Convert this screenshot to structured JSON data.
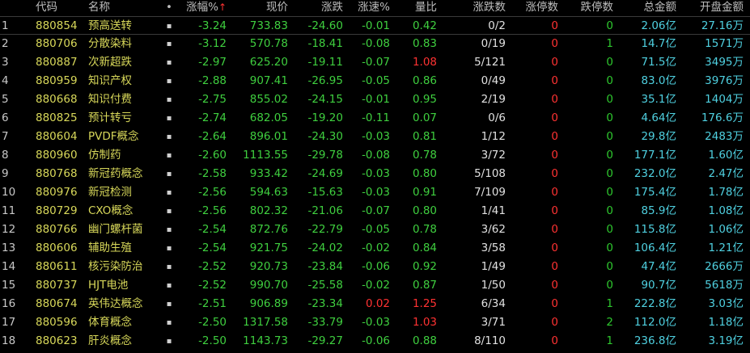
{
  "headers": {
    "code": "代码",
    "name": "名称",
    "dot": "•",
    "pct": "涨幅%",
    "sort_arrow": "↑",
    "price": "现价",
    "chg": "涨跌",
    "speed": "涨速%",
    "volratio": "量比",
    "updown": "涨跌数",
    "limitup": "涨停数",
    "limitdown": "跌停数",
    "amount": "总金额",
    "open_amount": "开盘金额"
  },
  "rows": [
    {
      "idx": "1",
      "code": "880854",
      "name": "预高送转",
      "dot": "▪",
      "pct": "-3.24",
      "price": "733.83",
      "chg": "-24.60",
      "speed": "-0.01",
      "vol": "0.42",
      "ud": "0/2",
      "lu": "0",
      "ld": "0",
      "amt": "2.06亿",
      "open": "27.16万"
    },
    {
      "idx": "2",
      "code": "880706",
      "name": "分散染料",
      "dot": "▪",
      "pct": "-3.12",
      "price": "570.78",
      "chg": "-18.41",
      "speed": "-0.08",
      "vol": "0.83",
      "ud": "0/19",
      "lu": "0",
      "ld": "1",
      "amt": "14.7亿",
      "open": "1571万"
    },
    {
      "idx": "3",
      "code": "880887",
      "name": "次新超跌",
      "dot": "▪",
      "pct": "-2.97",
      "price": "625.20",
      "chg": "-19.11",
      "speed": "-0.07",
      "vol": "1.08",
      "ud": "5/121",
      "lu": "0",
      "ld": "0",
      "amt": "71.5亿",
      "open": "3495万"
    },
    {
      "idx": "4",
      "code": "880959",
      "name": "知识产权",
      "dot": "▪",
      "pct": "-2.88",
      "price": "907.41",
      "chg": "-26.95",
      "speed": "-0.05",
      "vol": "0.86",
      "ud": "0/49",
      "lu": "0",
      "ld": "0",
      "amt": "83.0亿",
      "open": "3976万"
    },
    {
      "idx": "5",
      "code": "880668",
      "name": "知识付费",
      "dot": "▪",
      "pct": "-2.75",
      "price": "855.02",
      "chg": "-24.15",
      "speed": "-0.01",
      "vol": "0.95",
      "ud": "2/19",
      "lu": "0",
      "ld": "0",
      "amt": "35.1亿",
      "open": "1404万"
    },
    {
      "idx": "6",
      "code": "880825",
      "name": "预计转亏",
      "dot": "▪",
      "pct": "-2.74",
      "price": "682.05",
      "chg": "-19.20",
      "speed": "-0.11",
      "vol": "0.07",
      "ud": "0/6",
      "lu": "0",
      "ld": "0",
      "amt": "4.64亿",
      "open": "176.6万"
    },
    {
      "idx": "7",
      "code": "880604",
      "name": "PVDF概念",
      "dot": "▪",
      "pct": "-2.64",
      "price": "896.01",
      "chg": "-24.30",
      "speed": "-0.03",
      "vol": "0.81",
      "ud": "1/12",
      "lu": "0",
      "ld": "0",
      "amt": "29.8亿",
      "open": "2483万"
    },
    {
      "idx": "8",
      "code": "880960",
      "name": "仿制药",
      "dot": "▪",
      "pct": "-2.60",
      "price": "1113.55",
      "chg": "-29.78",
      "speed": "-0.08",
      "vol": "0.78",
      "ud": "3/72",
      "lu": "0",
      "ld": "0",
      "amt": "177.1亿",
      "open": "1.60亿"
    },
    {
      "idx": "9",
      "code": "880768",
      "name": "新冠药概念",
      "dot": "▪",
      "pct": "-2.58",
      "price": "933.42",
      "chg": "-24.69",
      "speed": "-0.03",
      "vol": "0.80",
      "ud": "5/108",
      "lu": "0",
      "ld": "0",
      "amt": "232.0亿",
      "open": "2.47亿"
    },
    {
      "idx": "10",
      "code": "880976",
      "name": "新冠检测",
      "dot": "▪",
      "pct": "-2.56",
      "price": "594.63",
      "chg": "-15.63",
      "speed": "-0.03",
      "vol": "0.91",
      "ud": "7/109",
      "lu": "0",
      "ld": "0",
      "amt": "175.4亿",
      "open": "1.78亿"
    },
    {
      "idx": "11",
      "code": "880729",
      "name": "CXO概念",
      "dot": "▪",
      "pct": "-2.56",
      "price": "802.32",
      "chg": "-21.06",
      "speed": "-0.07",
      "vol": "0.80",
      "ud": "1/41",
      "lu": "0",
      "ld": "0",
      "amt": "85.9亿",
      "open": "1.08亿"
    },
    {
      "idx": "12",
      "code": "880766",
      "name": "幽门螺杆菌",
      "dot": "▪",
      "pct": "-2.54",
      "price": "872.76",
      "chg": "-22.79",
      "speed": "-0.05",
      "vol": "0.78",
      "ud": "3/62",
      "lu": "0",
      "ld": "0",
      "amt": "115.8亿",
      "open": "1.06亿"
    },
    {
      "idx": "13",
      "code": "880606",
      "name": "辅助生殖",
      "dot": "▪",
      "pct": "-2.54",
      "price": "921.75",
      "chg": "-24.02",
      "speed": "-0.02",
      "vol": "0.84",
      "ud": "3/58",
      "lu": "0",
      "ld": "0",
      "amt": "106.4亿",
      "open": "1.21亿"
    },
    {
      "idx": "14",
      "code": "880611",
      "name": "核污染防治",
      "dot": "▪",
      "pct": "-2.52",
      "price": "920.73",
      "chg": "-23.84",
      "speed": "-0.06",
      "vol": "0.92",
      "ud": "1/49",
      "lu": "0",
      "ld": "0",
      "amt": "47.4亿",
      "open": "2666万"
    },
    {
      "idx": "15",
      "code": "880737",
      "name": "HJT电池",
      "dot": "▪",
      "pct": "-2.52",
      "price": "990.70",
      "chg": "-25.58",
      "speed": "-0.02",
      "vol": "0.87",
      "ud": "1/50",
      "lu": "0",
      "ld": "0",
      "amt": "90.7亿",
      "open": "5618万"
    },
    {
      "idx": "16",
      "code": "880674",
      "name": "英伟达概念",
      "dot": "▪",
      "pct": "-2.51",
      "price": "906.89",
      "chg": "-23.34",
      "speed": "0.02",
      "vol": "1.25",
      "ud": "6/34",
      "lu": "0",
      "ld": "1",
      "amt": "222.8亿",
      "open": "3.03亿"
    },
    {
      "idx": "17",
      "code": "880596",
      "name": "体育概念",
      "dot": "▪",
      "pct": "-2.50",
      "price": "1317.58",
      "chg": "-33.79",
      "speed": "-0.03",
      "vol": "1.03",
      "ud": "3/71",
      "lu": "0",
      "ld": "2",
      "amt": "112.0亿",
      "open": "1.18亿"
    },
    {
      "idx": "18",
      "code": "880623",
      "name": "肝炎概念",
      "dot": "▪",
      "pct": "-2.50",
      "price": "1143.73",
      "chg": "-29.27",
      "speed": "-0.06",
      "vol": "0.88",
      "ud": "8/110",
      "lu": "0",
      "ld": "1",
      "amt": "236.8亿",
      "open": "3.19亿"
    }
  ],
  "colors": {
    "background": "#000000",
    "down": "#3fcf3f",
    "up": "#ff3232",
    "code": "#d8d85a",
    "amount": "#4fd0e0"
  }
}
